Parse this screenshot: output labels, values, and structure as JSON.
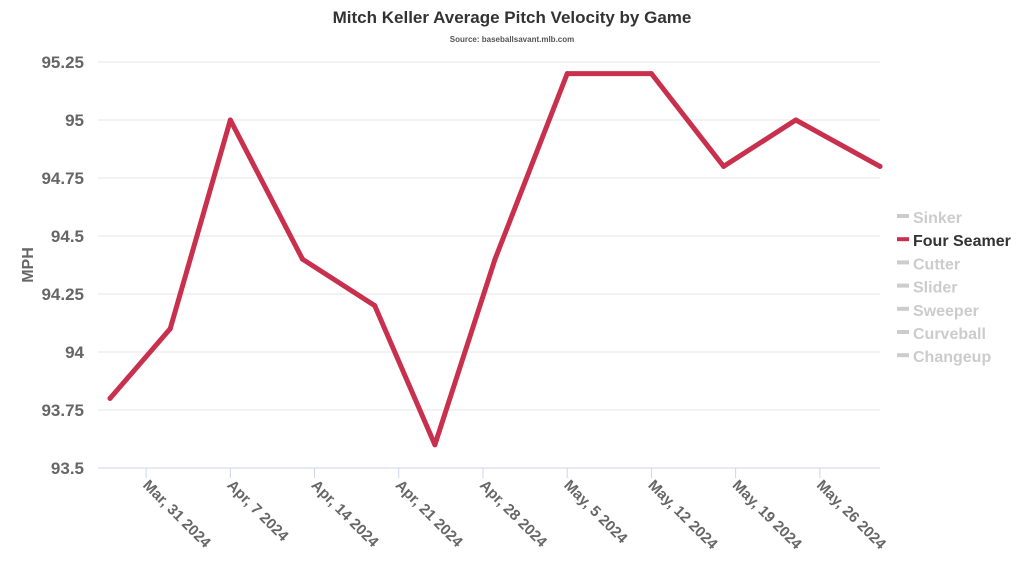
{
  "chart_data": {
    "type": "line",
    "title": "Mitch Keller Average Pitch Velocity by Game",
    "subtitle": "Source: baseballsavant.mlb.com",
    "xlabel": "",
    "ylabel": "MPH",
    "ylim": [
      93.5,
      95.25
    ],
    "yticks": [
      93.5,
      93.75,
      94,
      94.25,
      94.5,
      94.75,
      95,
      95.25
    ],
    "ytick_labels": [
      "93.5",
      "93.75",
      "94",
      "94.25",
      "94.5",
      "94.75",
      "95",
      "95.25"
    ],
    "xlim": [
      "2024-03-27",
      "2024-05-31"
    ],
    "xticks": [
      "2024-03-31",
      "2024-04-07",
      "2024-04-14",
      "2024-04-21",
      "2024-04-28",
      "2024-05-05",
      "2024-05-12",
      "2024-05-19",
      "2024-05-26"
    ],
    "xtick_labels": [
      "Mar, 31 2024",
      "Apr, 7 2024",
      "Apr, 14 2024",
      "Apr, 21 2024",
      "Apr, 28 2024",
      "May, 5 2024",
      "May, 12 2024",
      "May, 19 2024",
      "May, 26 2024"
    ],
    "grid": true,
    "legend_position": "right",
    "series": [
      {
        "name": "Four Seamer",
        "color": "#c8304d",
        "x": [
          "2024-03-28",
          "2024-04-02",
          "2024-04-07",
          "2024-04-13",
          "2024-04-19",
          "2024-04-24",
          "2024-04-29",
          "2024-05-05",
          "2024-05-12",
          "2024-05-18",
          "2024-05-24",
          "2024-05-31"
        ],
        "values": [
          93.8,
          94.1,
          95.0,
          94.4,
          94.2,
          93.6,
          94.4,
          95.2,
          95.2,
          94.8,
          95.0,
          94.8
        ]
      }
    ],
    "legend": [
      {
        "label": "Sinker",
        "active": false
      },
      {
        "label": "Four Seamer",
        "active": true
      },
      {
        "label": "Cutter",
        "active": false
      },
      {
        "label": "Slider",
        "active": false
      },
      {
        "label": "Sweeper",
        "active": false
      },
      {
        "label": "Curveball",
        "active": false
      },
      {
        "label": "Changeup",
        "active": false
      }
    ],
    "inactive_color": "#cccccc",
    "grid_color": "#e6e6e6"
  }
}
